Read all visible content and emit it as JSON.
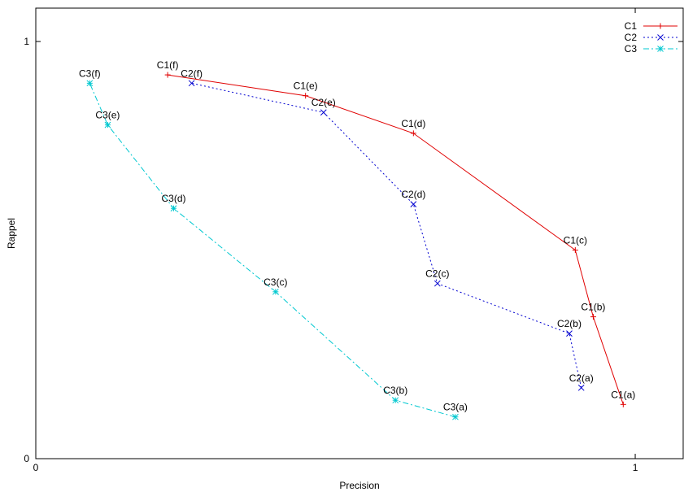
{
  "chart_data": {
    "type": "line",
    "xlabel": "Precision",
    "ylabel": "Rappel",
    "xlim": [
      0,
      1.08
    ],
    "ylim": [
      0,
      1.08
    ],
    "xticks": [
      {
        "value": 0,
        "label": "0"
      },
      {
        "value": 1,
        "label": "1"
      }
    ],
    "yticks": [
      {
        "value": 0,
        "label": "0"
      },
      {
        "value": 1,
        "label": "1"
      }
    ],
    "grid": false,
    "legend_position": "top-right",
    "series": [
      {
        "name": "C1",
        "color": "#e00000",
        "dash": "solid",
        "marker": "plus",
        "points": [
          {
            "label": "C1(a)",
            "x": 0.98,
            "y": 0.13
          },
          {
            "label": "C1(b)",
            "x": 0.93,
            "y": 0.34
          },
          {
            "label": "C1(c)",
            "x": 0.9,
            "y": 0.5
          },
          {
            "label": "C1(d)",
            "x": 0.63,
            "y": 0.78
          },
          {
            "label": "C1(e)",
            "x": 0.45,
            "y": 0.87
          },
          {
            "label": "C1(f)",
            "x": 0.22,
            "y": 0.92
          }
        ]
      },
      {
        "name": "C2",
        "color": "#0000d0",
        "dash": "dotted",
        "marker": "cross",
        "points": [
          {
            "label": "C2(a)",
            "x": 0.91,
            "y": 0.17
          },
          {
            "label": "C2(b)",
            "x": 0.89,
            "y": 0.3
          },
          {
            "label": "C2(c)",
            "x": 0.67,
            "y": 0.42
          },
          {
            "label": "C2(d)",
            "x": 0.63,
            "y": 0.61
          },
          {
            "label": "C2(e)",
            "x": 0.48,
            "y": 0.83
          },
          {
            "label": "C2(f)",
            "x": 0.26,
            "y": 0.9
          }
        ]
      },
      {
        "name": "C3",
        "color": "#00c8d0",
        "dash": "dashdot",
        "marker": "star",
        "points": [
          {
            "label": "C3(a)",
            "x": 0.7,
            "y": 0.1
          },
          {
            "label": "C3(b)",
            "x": 0.6,
            "y": 0.14
          },
          {
            "label": "C3(c)",
            "x": 0.4,
            "y": 0.4
          },
          {
            "label": "C3(d)",
            "x": 0.23,
            "y": 0.6
          },
          {
            "label": "C3(e)",
            "x": 0.12,
            "y": 0.8
          },
          {
            "label": "C3(f)",
            "x": 0.09,
            "y": 0.9
          }
        ]
      }
    ]
  }
}
